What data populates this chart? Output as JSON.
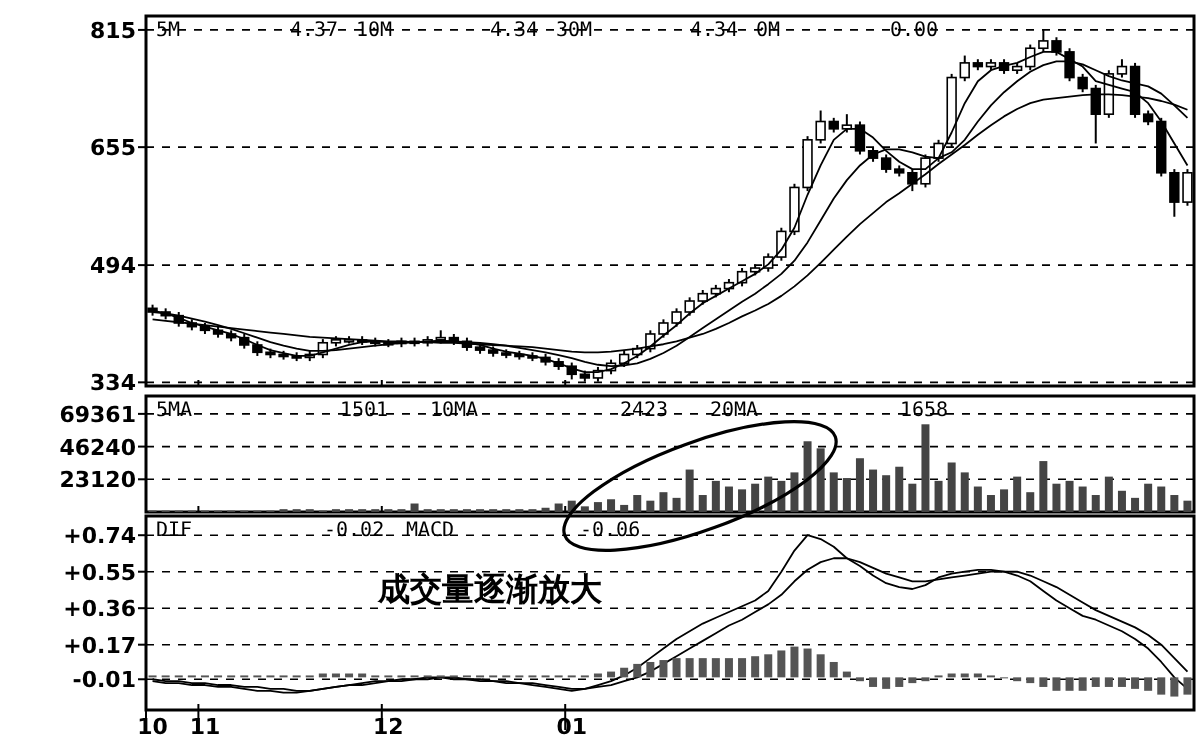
{
  "chart_data": [
    {
      "type": "candlestick",
      "categories": [
        "10",
        null,
        null,
        null,
        "11",
        null,
        null,
        null,
        null,
        null,
        null,
        null,
        null,
        null,
        null,
        null,
        null,
        null,
        "12",
        null,
        null,
        null,
        null,
        null,
        null,
        null,
        null,
        null,
        null,
        null,
        null,
        null,
        "01",
        null,
        null,
        null,
        null,
        null,
        null,
        null,
        null,
        null,
        null,
        null,
        null,
        null,
        null,
        null,
        null,
        null,
        null,
        null,
        null,
        null,
        null,
        null,
        null,
        null,
        null,
        null,
        null,
        null,
        null,
        null,
        null,
        null,
        null,
        null,
        null,
        null,
        null,
        null,
        null,
        null,
        null,
        null,
        null,
        null,
        null,
        null
      ],
      "ohlc": [
        [
          435,
          440,
          425,
          430
        ],
        [
          430,
          435,
          420,
          425
        ],
        [
          425,
          430,
          410,
          415
        ],
        [
          415,
          420,
          405,
          410
        ],
        [
          410,
          415,
          400,
          405
        ],
        [
          405,
          410,
          395,
          400
        ],
        [
          400,
          405,
          390,
          395
        ],
        [
          395,
          400,
          380,
          385
        ],
        [
          385,
          390,
          370,
          375
        ],
        [
          375,
          380,
          367,
          372
        ],
        [
          372,
          377,
          365,
          370
        ],
        [
          370,
          375,
          363,
          368
        ],
        [
          368,
          377,
          363,
          372
        ],
        [
          372,
          393,
          367,
          388
        ],
        [
          388,
          397,
          383,
          392
        ],
        [
          392,
          397,
          387,
          392
        ],
        [
          392,
          397,
          385,
          390
        ],
        [
          390,
          395,
          383,
          388
        ],
        [
          388,
          393,
          382,
          387
        ],
        [
          387,
          395,
          382,
          390
        ],
        [
          390,
          395,
          383,
          388
        ],
        [
          388,
          397,
          383,
          392
        ],
        [
          392,
          405,
          387,
          395
        ],
        [
          395,
          400,
          385,
          390
        ],
        [
          390,
          395,
          377,
          382
        ],
        [
          382,
          387,
          373,
          378
        ],
        [
          378,
          383,
          369,
          374
        ],
        [
          374,
          379,
          367,
          372
        ],
        [
          372,
          377,
          365,
          370
        ],
        [
          370,
          375,
          363,
          368
        ],
        [
          368,
          373,
          357,
          362
        ],
        [
          362,
          367,
          351,
          356
        ],
        [
          356,
          361,
          338,
          345
        ],
        [
          345,
          350,
          335,
          340
        ],
        [
          340,
          355,
          335,
          350
        ],
        [
          350,
          365,
          345,
          360
        ],
        [
          360,
          377,
          355,
          372
        ],
        [
          372,
          385,
          367,
          380
        ],
        [
          380,
          405,
          375,
          400
        ],
        [
          400,
          420,
          395,
          415
        ],
        [
          415,
          435,
          410,
          430
        ],
        [
          430,
          450,
          425,
          445
        ],
        [
          445,
          460,
          440,
          455
        ],
        [
          455,
          467,
          450,
          462
        ],
        [
          462,
          475,
          457,
          470
        ],
        [
          470,
          490,
          465,
          485
        ],
        [
          485,
          495,
          480,
          490
        ],
        [
          490,
          510,
          485,
          505
        ],
        [
          505,
          545,
          500,
          540
        ],
        [
          540,
          605,
          535,
          600
        ],
        [
          600,
          670,
          595,
          665
        ],
        [
          665,
          705,
          660,
          690
        ],
        [
          690,
          695,
          675,
          680
        ],
        [
          680,
          700,
          675,
          685
        ],
        [
          685,
          690,
          645,
          650
        ],
        [
          650,
          655,
          635,
          640
        ],
        [
          640,
          645,
          620,
          625
        ],
        [
          625,
          630,
          615,
          620
        ],
        [
          620,
          625,
          595,
          605
        ],
        [
          605,
          645,
          600,
          640
        ],
        [
          640,
          665,
          635,
          660
        ],
        [
          660,
          755,
          655,
          750
        ],
        [
          750,
          780,
          745,
          770
        ],
        [
          770,
          775,
          760,
          765
        ],
        [
          765,
          775,
          760,
          770
        ],
        [
          770,
          775,
          755,
          760
        ],
        [
          760,
          770,
          755,
          765
        ],
        [
          765,
          795,
          760,
          790
        ],
        [
          790,
          815,
          785,
          800
        ],
        [
          800,
          805,
          780,
          785
        ],
        [
          785,
          790,
          745,
          750
        ],
        [
          750,
          755,
          730,
          735
        ],
        [
          735,
          740,
          660,
          700
        ],
        [
          700,
          760,
          695,
          755
        ],
        [
          755,
          775,
          750,
          765
        ],
        [
          765,
          770,
          695,
          700
        ],
        [
          700,
          705,
          685,
          690
        ],
        [
          690,
          695,
          615,
          620
        ],
        [
          620,
          625,
          560,
          580
        ],
        [
          580,
          625,
          575,
          620
        ]
      ],
      "series": [
        {
          "type": "line",
          "color": "#000000",
          "values": [
            432,
            428,
            422,
            415,
            410,
            405,
            400,
            393,
            385,
            378,
            374,
            370,
            370,
            375,
            380,
            385,
            389,
            390,
            389,
            388,
            389,
            390,
            391,
            390,
            388,
            385,
            380,
            376,
            373,
            370,
            366,
            360,
            353,
            348,
            348,
            352,
            360,
            370,
            383,
            398,
            412,
            428,
            442,
            452,
            462,
            472,
            482,
            495,
            515,
            545,
            590,
            630,
            665,
            680,
            680,
            668,
            650,
            635,
            625,
            625,
            640,
            675,
            715,
            745,
            760,
            766,
            770,
            778,
            785,
            785,
            775,
            765,
            745,
            740,
            735,
            730,
            715,
            690,
            660,
            630
          ]
        },
        {
          "type": "line",
          "color": "#000000",
          "values": [
            430,
            428,
            425,
            421,
            417,
            412,
            407,
            401,
            395,
            389,
            384,
            380,
            377,
            377,
            378,
            380,
            382,
            384,
            386,
            388,
            389,
            389,
            390,
            390,
            389,
            388,
            386,
            384,
            381,
            378,
            375,
            371,
            367,
            362,
            358,
            356,
            357,
            360,
            366,
            374,
            384,
            396,
            408,
            420,
            432,
            444,
            455,
            468,
            482,
            500,
            525,
            555,
            585,
            610,
            630,
            645,
            652,
            652,
            648,
            642,
            640,
            648,
            665,
            690,
            712,
            730,
            745,
            758,
            767,
            772,
            772,
            768,
            760,
            752,
            746,
            742,
            738,
            728,
            712,
            695
          ]
        },
        {
          "type": "line",
          "color": "#000000",
          "values": [
            420,
            418,
            416,
            414,
            412,
            410,
            408,
            406,
            404,
            402,
            400,
            398,
            396,
            395,
            394,
            393,
            392,
            391,
            390,
            390,
            389,
            389,
            388,
            388,
            387,
            386,
            385,
            384,
            383,
            382,
            380,
            378,
            376,
            375,
            375,
            376,
            378,
            380,
            383,
            386,
            390,
            395,
            400,
            407,
            415,
            424,
            432,
            441,
            452,
            465,
            480,
            497,
            515,
            533,
            550,
            565,
            580,
            592,
            605,
            618,
            632,
            645,
            658,
            672,
            685,
            697,
            707,
            715,
            720,
            722,
            724,
            726,
            727,
            727,
            726,
            724,
            722,
            718,
            713,
            706
          ]
        }
      ],
      "ylim": [
        329,
        834
      ],
      "yticks": [
        334,
        494,
        655,
        815
      ],
      "grid": "y",
      "tick_labels": "y",
      "annotations": [
        "5M",
        "4.37",
        "10M",
        "4.34",
        "30M",
        "4.34",
        "0M",
        "0.00"
      ]
    },
    {
      "type": "bar",
      "categories": [
        "10",
        null,
        null,
        null,
        "11",
        null,
        null,
        null,
        null,
        null,
        null,
        null,
        null,
        null,
        null,
        null,
        null,
        null,
        "12",
        null,
        null,
        null,
        null,
        null,
        null,
        null,
        null,
        null,
        null,
        null,
        null,
        null,
        "01",
        null,
        null,
        null,
        null,
        null,
        null,
        null,
        null,
        null,
        null,
        null,
        null,
        null,
        null,
        null,
        null,
        null,
        null,
        null,
        null,
        null,
        null,
        null,
        null,
        null,
        null,
        null,
        null,
        null,
        null,
        null,
        null,
        null,
        null,
        null,
        null,
        null,
        null,
        null,
        null,
        null,
        null,
        null,
        null,
        null,
        null,
        null
      ],
      "series": [
        {
          "color": "#444444",
          "values": [
            1000,
            1000,
            1000,
            1000,
            1000,
            1000,
            1000,
            1000,
            1000,
            1000,
            2000,
            2000,
            2000,
            1000,
            2000,
            2000,
            2000,
            2000,
            2000,
            2000,
            6000,
            2000,
            2000,
            2000,
            2000,
            2000,
            2000,
            2000,
            2000,
            2000,
            3000,
            6000,
            8000,
            4000,
            7000,
            9000,
            5000,
            12000,
            8000,
            14000,
            10000,
            30000,
            12000,
            22000,
            18000,
            16000,
            20000,
            25000,
            22000,
            28000,
            50000,
            45000,
            28000,
            24000,
            38000,
            30000,
            26000,
            32000,
            20000,
            62000,
            22000,
            35000,
            28000,
            18000,
            12000,
            16000,
            25000,
            14000,
            36000,
            20000,
            22000,
            18000,
            12000,
            25000,
            15000,
            10000,
            20000,
            18000,
            12000,
            8000
          ]
        }
      ],
      "ylim": [
        0,
        82000
      ],
      "yticks": [
        23120,
        46240,
        69361
      ],
      "grid": "y",
      "tick_labels": "y",
      "annotations": [
        "5MA",
        "1501",
        "10MA",
        "2423",
        "20MA",
        "1658"
      ]
    },
    {
      "type": "line",
      "categories": [
        "10",
        null,
        null,
        null,
        "11",
        null,
        null,
        null,
        null,
        null,
        null,
        null,
        null,
        null,
        null,
        null,
        null,
        null,
        "12",
        null,
        null,
        null,
        null,
        null,
        null,
        null,
        null,
        null,
        null,
        null,
        null,
        null,
        "01",
        null,
        null,
        null,
        null,
        null,
        null,
        null,
        null,
        null,
        null,
        null,
        null,
        null,
        null,
        null,
        null,
        null,
        null,
        null,
        null,
        null,
        null,
        null,
        null,
        null,
        null,
        null,
        null,
        null,
        null,
        null,
        null,
        null,
        null,
        null,
        null,
        null,
        null,
        null,
        null,
        null,
        null,
        null,
        null,
        null,
        null,
        null
      ],
      "series": [
        {
          "type": "line",
          "color": "#000000",
          "values": [
            -0.02,
            -0.03,
            -0.03,
            -0.04,
            -0.04,
            -0.05,
            -0.05,
            -0.06,
            -0.07,
            -0.07,
            -0.08,
            -0.08,
            -0.07,
            -0.06,
            -0.05,
            -0.04,
            -0.03,
            -0.02,
            -0.02,
            -0.01,
            -0.01,
            0.0,
            0.0,
            -0.01,
            -0.01,
            -0.02,
            -0.02,
            -0.03,
            -0.03,
            -0.04,
            -0.05,
            -0.06,
            -0.07,
            -0.06,
            -0.04,
            -0.02,
            0.01,
            0.05,
            0.1,
            0.15,
            0.2,
            0.24,
            0.28,
            0.31,
            0.34,
            0.37,
            0.4,
            0.45,
            0.55,
            0.66,
            0.74,
            0.72,
            0.68,
            0.62,
            0.58,
            0.53,
            0.49,
            0.47,
            0.46,
            0.48,
            0.52,
            0.54,
            0.55,
            0.56,
            0.56,
            0.55,
            0.53,
            0.5,
            0.45,
            0.4,
            0.36,
            0.32,
            0.3,
            0.27,
            0.24,
            0.2,
            0.15,
            0.08,
            0.0,
            -0.06
          ]
        },
        {
          "type": "line",
          "color": "#000000",
          "values": [
            -0.01,
            -0.02,
            -0.02,
            -0.03,
            -0.03,
            -0.04,
            -0.04,
            -0.05,
            -0.05,
            -0.06,
            -0.06,
            -0.07,
            -0.07,
            -0.06,
            -0.05,
            -0.04,
            -0.04,
            -0.03,
            -0.02,
            -0.02,
            -0.01,
            -0.01,
            0.0,
            0.0,
            -0.01,
            -0.01,
            -0.02,
            -0.02,
            -0.03,
            -0.03,
            -0.04,
            -0.05,
            -0.06,
            -0.06,
            -0.05,
            -0.04,
            -0.02,
            0.0,
            0.03,
            0.07,
            0.11,
            0.15,
            0.19,
            0.23,
            0.27,
            0.3,
            0.34,
            0.38,
            0.43,
            0.5,
            0.56,
            0.6,
            0.62,
            0.62,
            0.6,
            0.57,
            0.54,
            0.52,
            0.5,
            0.5,
            0.51,
            0.52,
            0.53,
            0.54,
            0.55,
            0.55,
            0.55,
            0.53,
            0.5,
            0.47,
            0.43,
            0.39,
            0.35,
            0.32,
            0.29,
            0.26,
            0.22,
            0.17,
            0.1,
            0.03
          ]
        },
        {
          "type": "bar",
          "color": "#555555",
          "values": [
            0.01,
            0.01,
            0.01,
            0.01,
            0.01,
            0.01,
            0.01,
            0.01,
            0.01,
            0.01,
            0.01,
            0.01,
            0.01,
            0.02,
            0.02,
            0.02,
            0.02,
            0.01,
            0.01,
            0.01,
            0.01,
            0.01,
            0.01,
            0.01,
            0.01,
            0.01,
            0.01,
            0.01,
            0.01,
            0.01,
            0.01,
            0.01,
            0.01,
            0.01,
            0.02,
            0.03,
            0.05,
            0.07,
            0.08,
            0.09,
            0.1,
            0.1,
            0.1,
            0.1,
            0.1,
            0.1,
            0.11,
            0.12,
            0.14,
            0.16,
            0.15,
            0.12,
            0.08,
            0.03,
            -0.02,
            -0.05,
            -0.06,
            -0.05,
            -0.03,
            -0.02,
            0.01,
            0.02,
            0.02,
            0.02,
            0.01,
            0.0,
            -0.02,
            -0.03,
            -0.05,
            -0.07,
            -0.07,
            -0.07,
            -0.05,
            -0.05,
            -0.05,
            -0.06,
            -0.07,
            -0.09,
            -0.1,
            -0.09
          ]
        }
      ],
      "ylim": [
        -0.17,
        0.84
      ],
      "yticks": [
        {
          "value": 0.74,
          "label": "+0.74"
        },
        {
          "value": 0.55,
          "label": "+0.55"
        },
        {
          "value": 0.36,
          "label": "+0.36"
        },
        {
          "value": 0.17,
          "label": "+0.17"
        },
        -0.01
      ],
      "grid": "y",
      "annotations": [
        "DIF",
        "-0.02",
        "MACD",
        "-0.06",
        "成交量逐渐放大"
      ]
    }
  ]
}
